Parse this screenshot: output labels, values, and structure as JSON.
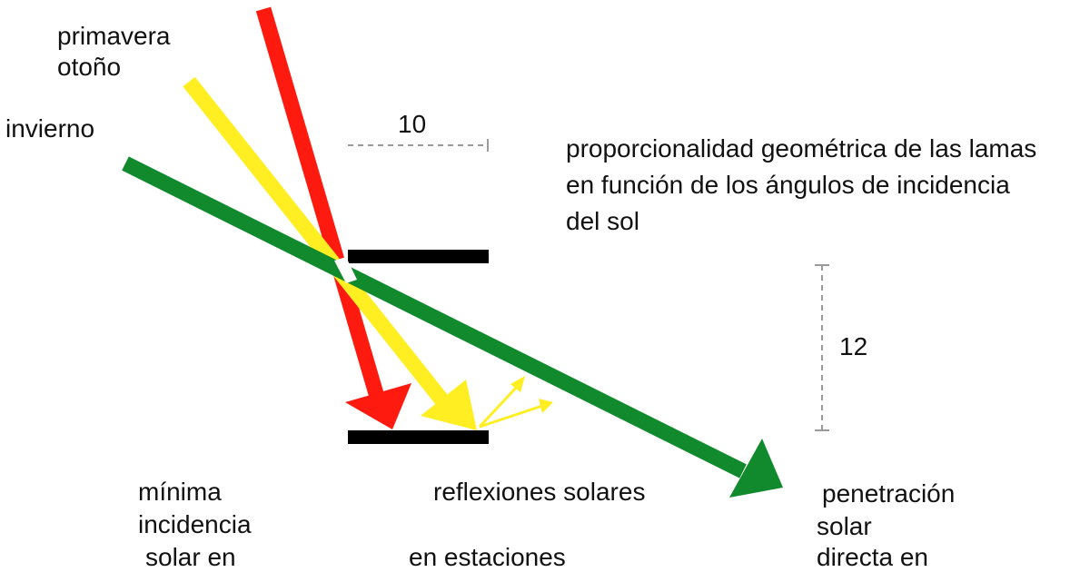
{
  "colors": {
    "summer_ray": "#ff1a10",
    "spring_autumn_ray": "#ffee22",
    "winter_ray": "#118a2e",
    "louver": "#000000",
    "dimension_line": "#9a9a9a",
    "background": "#ffffff"
  },
  "labels": {
    "spring": "primavera",
    "autumn": "otoño",
    "winter": "invierno",
    "title_line1": "proporcionalidad geométrica de las lamas",
    "title_line2": "en función de los ángulos de incidencia",
    "title_line3": "del sol",
    "min_incidence_line1": "mínima",
    "min_incidence_line2": "incidencia",
    "min_incidence_line3": "solar en",
    "reflections_line1": "reflexiones solares",
    "reflections_line2": "en estaciones",
    "penetration_line1": "penetración",
    "penetration_line2": "solar",
    "penetration_line3": "directa en"
  },
  "dimensions": {
    "louver_depth": "10",
    "louver_spacing": "12"
  }
}
